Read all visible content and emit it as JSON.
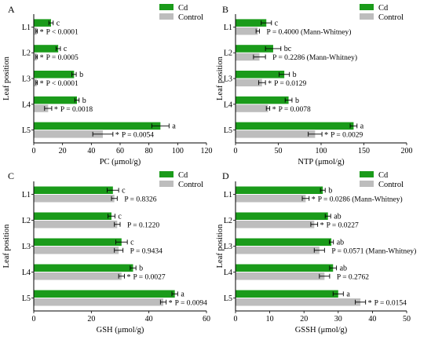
{
  "colors": {
    "cd": "#1a9b1a",
    "control": "#bdbdbd",
    "axis": "#000000"
  },
  "chart_data": [
    {
      "panel": "A",
      "type": "bar",
      "orientation": "horizontal",
      "categories": [
        "L1",
        "L2",
        "L3",
        "L4",
        "L5"
      ],
      "ylabel": "Leaf position",
      "xlabel": "PC (μmol/g)",
      "xlim": [
        0,
        120
      ],
      "xticks": [
        0,
        20,
        40,
        60,
        80,
        100,
        120
      ],
      "legend": [
        "Cd",
        "Control"
      ],
      "series": [
        {
          "name": "Cd",
          "values": [
            12,
            17,
            28,
            30,
            88
          ],
          "errors": [
            1.5,
            1.5,
            1.5,
            1.5,
            6
          ]
        },
        {
          "name": "Control",
          "values": [
            2,
            2,
            2,
            10,
            48
          ],
          "errors": [
            0.5,
            0.5,
            0.5,
            2.5,
            7
          ]
        }
      ],
      "letters": [
        "c",
        "c",
        "b",
        "b",
        "a"
      ],
      "stars": [
        "*",
        "*",
        "*",
        "*",
        "*"
      ],
      "pvalues": [
        "P < 0.0001",
        "P = 0.0005",
        "P < 0.0001",
        "P = 0.0018",
        "P = 0.0054"
      ]
    },
    {
      "panel": "B",
      "type": "bar",
      "orientation": "horizontal",
      "categories": [
        "L1",
        "L2",
        "L3",
        "L4",
        "L5"
      ],
      "ylabel": "Leaf position",
      "xlabel": "NTP (μmol/g)",
      "xlim": [
        0,
        200
      ],
      "xticks": [
        0,
        50,
        100,
        150,
        200
      ],
      "legend": [
        "Cd",
        "Control"
      ],
      "series": [
        {
          "name": "Cd",
          "values": [
            36,
            44,
            57,
            62,
            138
          ],
          "errors": [
            6,
            9,
            6,
            4,
            4
          ]
        },
        {
          "name": "Control",
          "values": [
            26,
            28,
            31,
            38,
            93
          ],
          "errors": [
            2,
            7,
            4,
            2,
            8
          ]
        }
      ],
      "letters": [
        "c",
        "bc",
        "b",
        "b",
        "a"
      ],
      "stars": [
        "",
        "",
        "*",
        "*",
        "*"
      ],
      "pvalues": [
        "P = 0.4000 (Mann-Whitney)",
        "P = 0.2286 (Mann-Whitney)",
        "P = 0.0129",
        "P = 0.0078",
        "P = 0.0029"
      ]
    },
    {
      "panel": "C",
      "type": "bar",
      "orientation": "horizontal",
      "categories": [
        "L1",
        "L2",
        "L3",
        "L4",
        "L5"
      ],
      "ylabel": "Leaf position",
      "xlabel": "GSH (μmol/g)",
      "xlim": [
        0,
        60
      ],
      "xticks": [
        0,
        20,
        40,
        60
      ],
      "legend": [
        "Cd",
        "Control"
      ],
      "series": [
        {
          "name": "Cd",
          "values": [
            27.5,
            27,
            30.5,
            34.5,
            49
          ],
          "errors": [
            2,
            1.2,
            2,
            1,
            1
          ]
        },
        {
          "name": "Control",
          "values": [
            28,
            29,
            29.5,
            30.5,
            45
          ],
          "errors": [
            1,
            1,
            1.5,
            1,
            1
          ]
        }
      ],
      "letters": [
        "c",
        "c",
        "c",
        "b",
        "a"
      ],
      "stars": [
        "",
        "",
        "",
        "*",
        "*"
      ],
      "pvalues": [
        "P = 0.8326",
        "P = 0.1220",
        "P = 0.9434",
        "P = 0.0027",
        "P = 0.0094"
      ]
    },
    {
      "panel": "D",
      "type": "bar",
      "orientation": "horizontal",
      "categories": [
        "L1",
        "L2",
        "L3",
        "L4",
        "L5"
      ],
      "ylabel": "Leaf position",
      "xlabel": "GSSH (μmol/g)",
      "xlim": [
        0,
        50
      ],
      "xticks": [
        0,
        10,
        20,
        30,
        40,
        50
      ],
      "legend": [
        "Cd",
        "Control"
      ],
      "series": [
        {
          "name": "Cd",
          "values": [
            25.5,
            27,
            28,
            28.5,
            30
          ],
          "errors": [
            0.7,
            0.8,
            0.6,
            1,
            1.5
          ]
        },
        {
          "name": "Control",
          "values": [
            20.5,
            23,
            24.5,
            26,
            36.5
          ],
          "errors": [
            1,
            1,
            1.5,
            1.5,
            1.5
          ]
        }
      ],
      "letters": [
        "b",
        "ab",
        "ab",
        "ab",
        "a"
      ],
      "stars": [
        "*",
        "*",
        "",
        "",
        "*"
      ],
      "pvalues": [
        "P = 0.0286 (Mann-Whitney)",
        "P = 0.0227",
        "P = 0.0571 (Mann-Whitney)",
        "P = 0.2762",
        "P = 0.0154"
      ]
    }
  ]
}
